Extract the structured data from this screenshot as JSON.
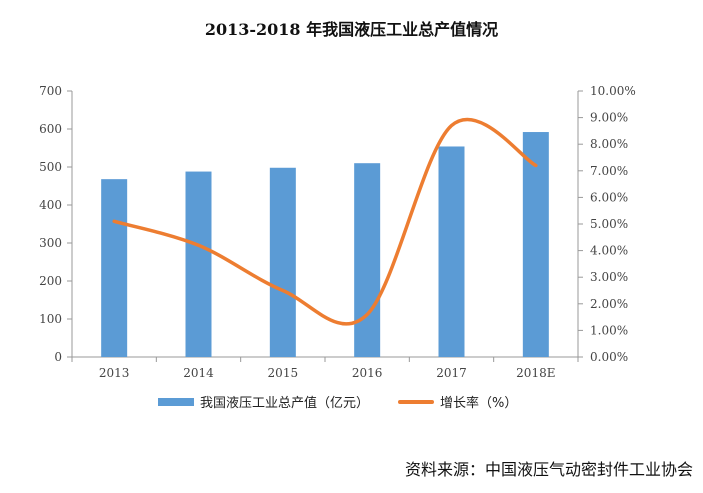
{
  "chart_data": {
    "type": "bar",
    "title": "2013-2018 年我国液压工业总产值情况",
    "categories": [
      "2013",
      "2014",
      "2015",
      "2016",
      "2017",
      "2018E"
    ],
    "series": [
      {
        "name": "我国液压工业总产值（亿元）",
        "type": "bar",
        "axis": "left",
        "values": [
          468,
          488,
          498,
          510,
          554,
          592
        ],
        "color": "#5B9BD5"
      },
      {
        "name": "增长率（%）",
        "type": "line",
        "axis": "right",
        "smooth": true,
        "values": [
          5.1,
          4.2,
          2.5,
          1.6,
          8.7,
          7.2
        ],
        "color": "#ED7D31"
      }
    ],
    "yleft": {
      "ylim": [
        0,
        700
      ],
      "ticks": [
        "0",
        "100",
        "200",
        "300",
        "400",
        "500",
        "600",
        "700"
      ]
    },
    "yright": {
      "ylim": [
        0,
        10
      ],
      "ticks": [
        "0.00%",
        "1.00%",
        "2.00%",
        "3.00%",
        "4.00%",
        "5.00%",
        "6.00%",
        "7.00%",
        "8.00%",
        "9.00%",
        "10.00%"
      ]
    },
    "grid": false,
    "legend": "bottom"
  },
  "source": "资料来源：中国液压气动密封件工业协会"
}
